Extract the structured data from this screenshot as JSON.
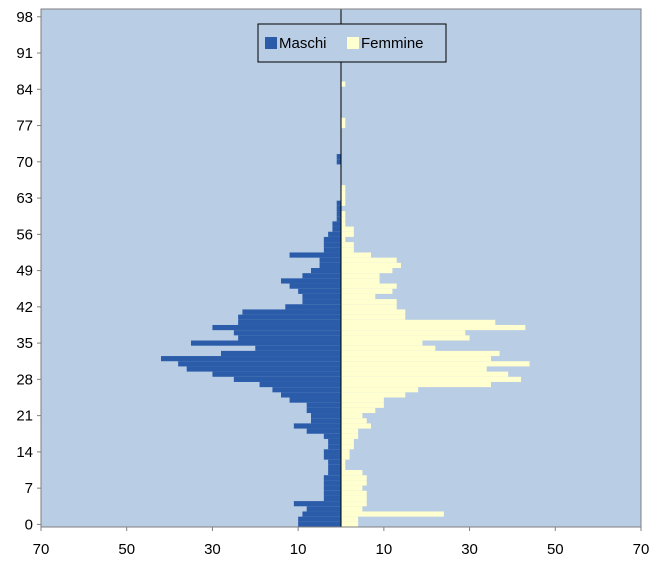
{
  "chart_data": {
    "type": "bar",
    "orientation": "horizontal-population-pyramid",
    "title": "",
    "xlabel": "",
    "ylabel": "",
    "ages": [
      0,
      1,
      2,
      3,
      4,
      5,
      6,
      7,
      8,
      9,
      10,
      11,
      12,
      13,
      14,
      15,
      16,
      17,
      18,
      19,
      20,
      21,
      22,
      23,
      24,
      25,
      26,
      27,
      28,
      29,
      30,
      31,
      32,
      33,
      34,
      35,
      36,
      37,
      38,
      39,
      40,
      41,
      42,
      43,
      44,
      45,
      46,
      47,
      48,
      49,
      50,
      51,
      52,
      53,
      54,
      55,
      56,
      57,
      58,
      59,
      60,
      61,
      62,
      63,
      64,
      65,
      66,
      67,
      68,
      69,
      70,
      71,
      72,
      73,
      74,
      75,
      76,
      77,
      78,
      79,
      80,
      81,
      82,
      83,
      84,
      85,
      86,
      87,
      88,
      89,
      90,
      91,
      92,
      93,
      94,
      95,
      96,
      97,
      98,
      99
    ],
    "series": [
      {
        "name": "Maschi",
        "color": "#2A5CA9",
        "values": [
          10,
          10,
          9,
          8,
          11,
          4,
          4,
          4,
          4,
          4,
          3,
          3,
          3,
          4,
          4,
          3,
          3,
          4,
          8,
          11,
          7,
          7,
          8,
          8,
          12,
          14,
          16,
          19,
          25,
          30,
          36,
          38,
          42,
          28,
          20,
          35,
          24,
          25,
          30,
          24,
          24,
          23,
          13,
          9,
          9,
          10,
          12,
          14,
          9,
          7,
          5,
          5,
          12,
          4,
          4,
          4,
          3,
          2,
          2,
          1,
          1,
          1,
          1,
          0,
          0,
          0,
          0,
          0,
          0,
          0,
          1,
          1,
          0,
          0,
          0,
          0,
          0,
          0,
          0,
          0,
          0,
          0,
          0,
          0,
          0,
          0,
          0,
          0,
          0,
          0,
          0,
          0,
          0,
          0,
          0,
          0,
          0,
          0,
          0,
          0
        ]
      },
      {
        "name": "Femmine",
        "color": "#FFFFD0",
        "values": [
          4,
          4,
          24,
          5,
          6,
          6,
          6,
          5,
          6,
          6,
          5,
          1,
          1,
          2,
          2,
          3,
          3,
          4,
          4,
          7,
          6,
          5,
          8,
          10,
          10,
          15,
          18,
          35,
          42,
          39,
          34,
          44,
          35,
          37,
          22,
          19,
          30,
          29,
          43,
          36,
          15,
          15,
          13,
          13,
          8,
          12,
          13,
          9,
          9,
          12,
          14,
          13,
          7,
          3,
          3,
          1,
          3,
          3,
          1,
          1,
          1,
          0,
          1,
          1,
          1,
          1,
          0,
          0,
          0,
          0,
          0,
          0,
          0,
          0,
          0,
          0,
          0,
          1,
          1,
          0,
          0,
          0,
          0,
          0,
          0,
          1,
          0,
          0,
          0,
          0,
          0,
          0,
          0,
          0,
          0,
          0,
          0,
          0,
          0,
          0
        ]
      }
    ],
    "x_ticks": [
      "70",
      "50",
      "30",
      "10",
      "10",
      "30",
      "50",
      "70"
    ],
    "x_tick_values": [
      -70,
      -50,
      -30,
      -10,
      10,
      30,
      50,
      70
    ],
    "y_ticks": [
      "0",
      "7",
      "14",
      "21",
      "28",
      "35",
      "42",
      "49",
      "56",
      "63",
      "70",
      "77",
      "84",
      "91",
      "98"
    ],
    "y_tick_values": [
      0,
      7,
      14,
      21,
      28,
      35,
      42,
      49,
      56,
      63,
      70,
      77,
      84,
      91,
      98
    ],
    "xlim": [
      -70,
      70
    ],
    "ylim": [
      -0.5,
      99.5
    ],
    "plot_background": "#B9CDE5",
    "axis_line_color": "#000000",
    "legend_position": "top-center",
    "grid": false
  }
}
